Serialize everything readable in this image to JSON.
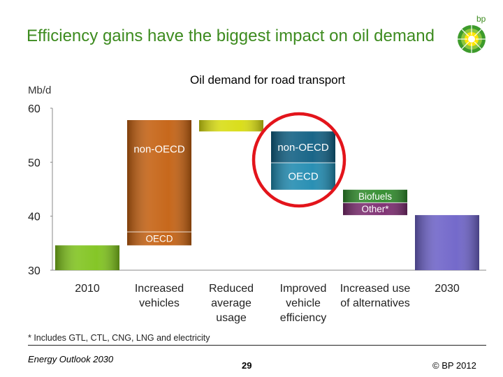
{
  "slide": {
    "title": "Efficiency gains have the biggest impact on oil demand",
    "logo_text": "bp",
    "footnote": "* Includes GTL, CTL, CNG, LNG and electricity",
    "footer_left": "Energy Outlook 2030",
    "page_number": "29",
    "copyright": "© BP 2012"
  },
  "chart_data": {
    "type": "bar",
    "subtype": "waterfall",
    "title": "Oil demand for road transport",
    "ylabel": "Mb/d",
    "ylim": [
      30,
      60
    ],
    "yticks": [
      30,
      40,
      50,
      60
    ],
    "grid": false,
    "highlighted_category": "Improved vehicle efficiency",
    "categories": [
      [
        "2010"
      ],
      [
        "Increased",
        "vehicles"
      ],
      [
        "Reduced",
        "average",
        "usage"
      ],
      [
        "Improved",
        "vehicle",
        "efficiency"
      ],
      [
        "Increased use",
        "of alternatives"
      ],
      [
        "2030"
      ]
    ],
    "bars": [
      {
        "category": 0,
        "segments": [
          {
            "label": "",
            "from": 30,
            "to": 34.6,
            "color": "#7fc31c"
          }
        ]
      },
      {
        "category": 1,
        "segments": [
          {
            "label": "OECD",
            "from": 34.6,
            "to": 37.1,
            "color": "#c46010"
          },
          {
            "label": "non-OECD",
            "from": 37.1,
            "to": 57.8,
            "color": "#c46010"
          }
        ]
      },
      {
        "category": 2,
        "segments": [
          {
            "label": "",
            "from": 55.7,
            "to": 57.8,
            "color": "#d8dc10"
          }
        ]
      },
      {
        "category": 3,
        "segments": [
          {
            "label": "OECD",
            "from": 44.9,
            "to": 49.9,
            "color": "#1f8ab0"
          },
          {
            "label": "non-OECD",
            "from": 49.9,
            "to": 55.7,
            "color": "#0e5e82"
          }
        ]
      },
      {
        "category": 4,
        "segments": [
          {
            "label": "Other*",
            "from": 40.2,
            "to": 42.5,
            "color": "#7a2a6e"
          },
          {
            "label": "Biofuels",
            "from": 42.5,
            "to": 44.9,
            "color": "#2e8a2a"
          }
        ]
      },
      {
        "category": 5,
        "segments": [
          {
            "label": "",
            "from": 30,
            "to": 40.2,
            "color": "#6d62c8"
          }
        ]
      }
    ]
  }
}
